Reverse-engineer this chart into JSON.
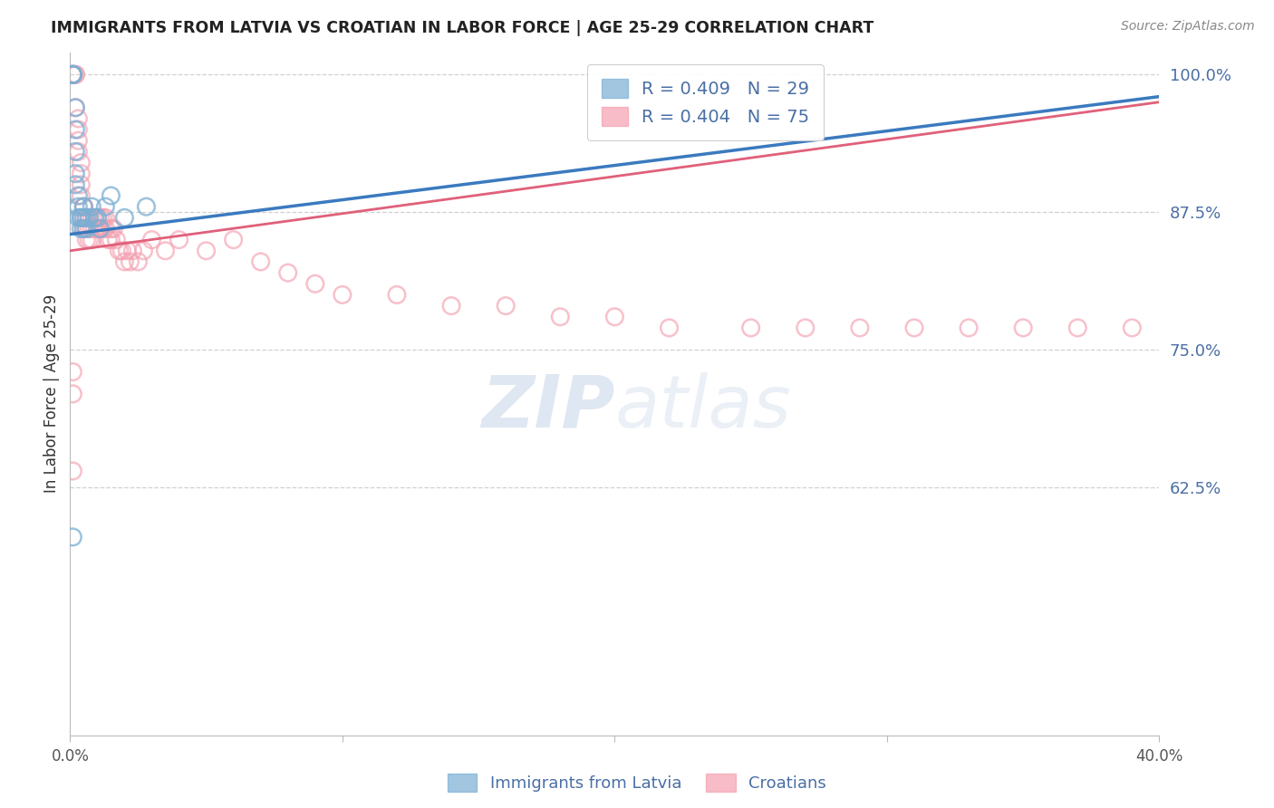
{
  "title": "IMMIGRANTS FROM LATVIA VS CROATIAN IN LABOR FORCE | AGE 25-29 CORRELATION CHART",
  "source": "Source: ZipAtlas.com",
  "ylabel": "In Labor Force | Age 25-29",
  "xlim": [
    0.0,
    0.4
  ],
  "ylim": [
    0.4,
    1.02
  ],
  "yticks_right": [
    1.0,
    0.875,
    0.75,
    0.625
  ],
  "yticklabels_right": [
    "100.0%",
    "87.5%",
    "75.0%",
    "62.5%"
  ],
  "legend_blue_label": "R = 0.409   N = 29",
  "legend_pink_label": "R = 0.404   N = 75",
  "legend_bottom_blue": "Immigrants from Latvia",
  "legend_bottom_pink": "Croatians",
  "blue_color": "#7bafd4",
  "pink_color": "#f4a0b0",
  "blue_line_color": "#3a7abf",
  "pink_line_color": "#e0607a",
  "watermark_zip": "ZIP",
  "watermark_atlas": "atlas",
  "blue_x": [
    0.001,
    0.001,
    0.001,
    0.002,
    0.002,
    0.002,
    0.002,
    0.002,
    0.003,
    0.003,
    0.003,
    0.004,
    0.004,
    0.004,
    0.005,
    0.005,
    0.005,
    0.006,
    0.006,
    0.007,
    0.008,
    0.009,
    0.01,
    0.011,
    0.013,
    0.015,
    0.02,
    0.028,
    0.001
  ],
  "blue_y": [
    1.0,
    1.0,
    1.0,
    0.97,
    0.95,
    0.93,
    0.91,
    0.9,
    0.89,
    0.88,
    0.87,
    0.87,
    0.87,
    0.86,
    0.86,
    0.87,
    0.88,
    0.87,
    0.86,
    0.87,
    0.88,
    0.87,
    0.87,
    0.86,
    0.88,
    0.89,
    0.87,
    0.88,
    0.58
  ],
  "pink_x": [
    0.001,
    0.001,
    0.002,
    0.002,
    0.002,
    0.003,
    0.003,
    0.003,
    0.003,
    0.004,
    0.004,
    0.004,
    0.004,
    0.005,
    0.005,
    0.005,
    0.005,
    0.006,
    0.006,
    0.006,
    0.007,
    0.007,
    0.007,
    0.008,
    0.008,
    0.008,
    0.009,
    0.009,
    0.01,
    0.01,
    0.011,
    0.011,
    0.012,
    0.012,
    0.013,
    0.013,
    0.014,
    0.015,
    0.015,
    0.016,
    0.017,
    0.018,
    0.019,
    0.02,
    0.021,
    0.022,
    0.023,
    0.025,
    0.027,
    0.03,
    0.035,
    0.04,
    0.05,
    0.06,
    0.07,
    0.08,
    0.09,
    0.1,
    0.12,
    0.14,
    0.16,
    0.18,
    0.2,
    0.22,
    0.25,
    0.27,
    0.29,
    0.31,
    0.33,
    0.35,
    0.37,
    0.39,
    0.001,
    0.001,
    0.001
  ],
  "pink_y": [
    1.0,
    1.0,
    1.0,
    1.0,
    0.97,
    0.96,
    0.95,
    0.94,
    0.93,
    0.92,
    0.91,
    0.9,
    0.89,
    0.88,
    0.88,
    0.87,
    0.86,
    0.87,
    0.86,
    0.85,
    0.87,
    0.86,
    0.85,
    0.87,
    0.86,
    0.85,
    0.87,
    0.86,
    0.87,
    0.86,
    0.87,
    0.86,
    0.87,
    0.86,
    0.87,
    0.86,
    0.85,
    0.86,
    0.85,
    0.86,
    0.85,
    0.84,
    0.84,
    0.83,
    0.84,
    0.83,
    0.84,
    0.83,
    0.84,
    0.85,
    0.84,
    0.85,
    0.84,
    0.85,
    0.83,
    0.82,
    0.81,
    0.8,
    0.8,
    0.79,
    0.79,
    0.78,
    0.78,
    0.77,
    0.77,
    0.77,
    0.77,
    0.77,
    0.77,
    0.77,
    0.77,
    0.77,
    0.73,
    0.71,
    0.64
  ],
  "blue_trend_x": [
    0.0,
    0.4
  ],
  "blue_trend_y": [
    0.855,
    0.98
  ],
  "pink_trend_x": [
    0.0,
    0.4
  ],
  "pink_trend_y": [
    0.84,
    0.975
  ]
}
